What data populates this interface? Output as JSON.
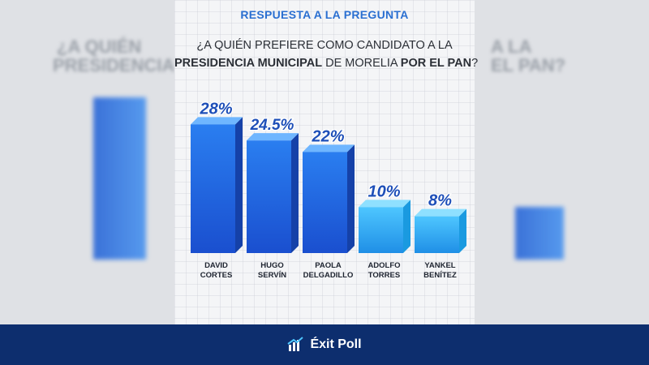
{
  "header": {
    "kicker": "RESPUESTA A LA PREGUNTA",
    "question_line1": "¿A QUIÉN PREFIERE COMO CANDIDATO A LA",
    "question_line2_bold1": "PRESIDENCIA MUNICIPAL",
    "question_line2_mid": " DE MORELIA ",
    "question_line2_bold2": "POR EL PAN",
    "question_line2_end": "?"
  },
  "chart_data": {
    "type": "bar",
    "categories": [
      [
        "DAVID",
        "CORTES"
      ],
      [
        "HUGO",
        "SERVÍN"
      ],
      [
        "PAOLA",
        "DELGADILLO"
      ],
      [
        "ADOLFO",
        "TORRES"
      ],
      [
        "YANKEL",
        "BENÍTEZ"
      ]
    ],
    "values": [
      28,
      24.5,
      22,
      10,
      8
    ],
    "value_labels": [
      "28%",
      "24.5%",
      "22%",
      "10%",
      "8%"
    ],
    "unit": "%",
    "ylim": [
      0,
      30
    ],
    "grid": false,
    "legend": "none",
    "colors": {
      "bar_front_dark": "#1a4fcf",
      "bar_front_light": "#2aa7f0",
      "bar_top": "#5ec7ff",
      "bar_side": "#1677c9"
    }
  },
  "footer": {
    "brand": "Éxit Poll",
    "logo_icon": "chart-check-icon",
    "background": "#0d2e6e"
  },
  "background_ghost": {
    "left_text_1": "¿A QUIÉN",
    "left_text_2": "PRESIDENCIA",
    "right_text_1": "A LA",
    "right_text_2": "EL PAN?"
  }
}
